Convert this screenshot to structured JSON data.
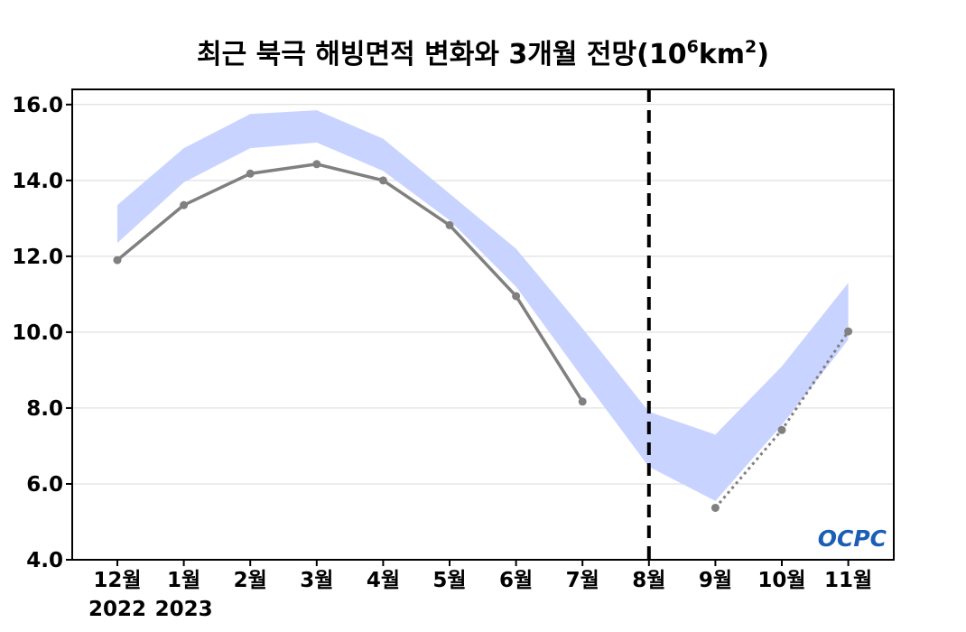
{
  "chart_data": {
    "type": "line",
    "title": {
      "main": "최근 북극 해빙면적 변화와 3개월 전망(10",
      "exp1": "6",
      "unit": "km",
      "exp2": "2",
      "close": ")"
    },
    "categories": [
      "12월",
      "1월",
      "2월",
      "3월",
      "4월",
      "5월",
      "6월",
      "7월",
      "8월",
      "9월",
      "10월",
      "11월"
    ],
    "year_labels": [
      "2022",
      "2023"
    ],
    "y_ticks": [
      "4.0",
      "6.0",
      "8.0",
      "10.0",
      "12.0",
      "14.0",
      "16.0"
    ],
    "ylim": [
      4.0,
      16.4
    ],
    "grid": true,
    "forecast_divider_category": "8월",
    "series": [
      {
        "values": [
          11.9,
          13.35,
          14.18,
          14.43,
          14.0,
          12.82,
          10.95,
          8.17,
          null,
          null,
          null,
          null
        ],
        "color": "#808080",
        "style": "solid"
      },
      {
        "values": [
          null,
          null,
          null,
          null,
          null,
          null,
          null,
          null,
          null,
          5.37,
          7.42,
          10.02
        ],
        "color": "#808080",
        "style": "dotted"
      }
    ],
    "range_band": {
      "lower": [
        12.35,
        13.95,
        14.85,
        15.0,
        14.25,
        12.95,
        11.2,
        8.8,
        6.45,
        5.55,
        7.55,
        9.8
      ],
      "upper": [
        13.35,
        14.85,
        15.75,
        15.85,
        15.1,
        13.65,
        12.2,
        10.1,
        7.9,
        7.3,
        9.1,
        11.3
      ],
      "color": "#c8d4ff"
    },
    "logo": {
      "text": "OCPC",
      "color": "#1a5fb4"
    }
  }
}
